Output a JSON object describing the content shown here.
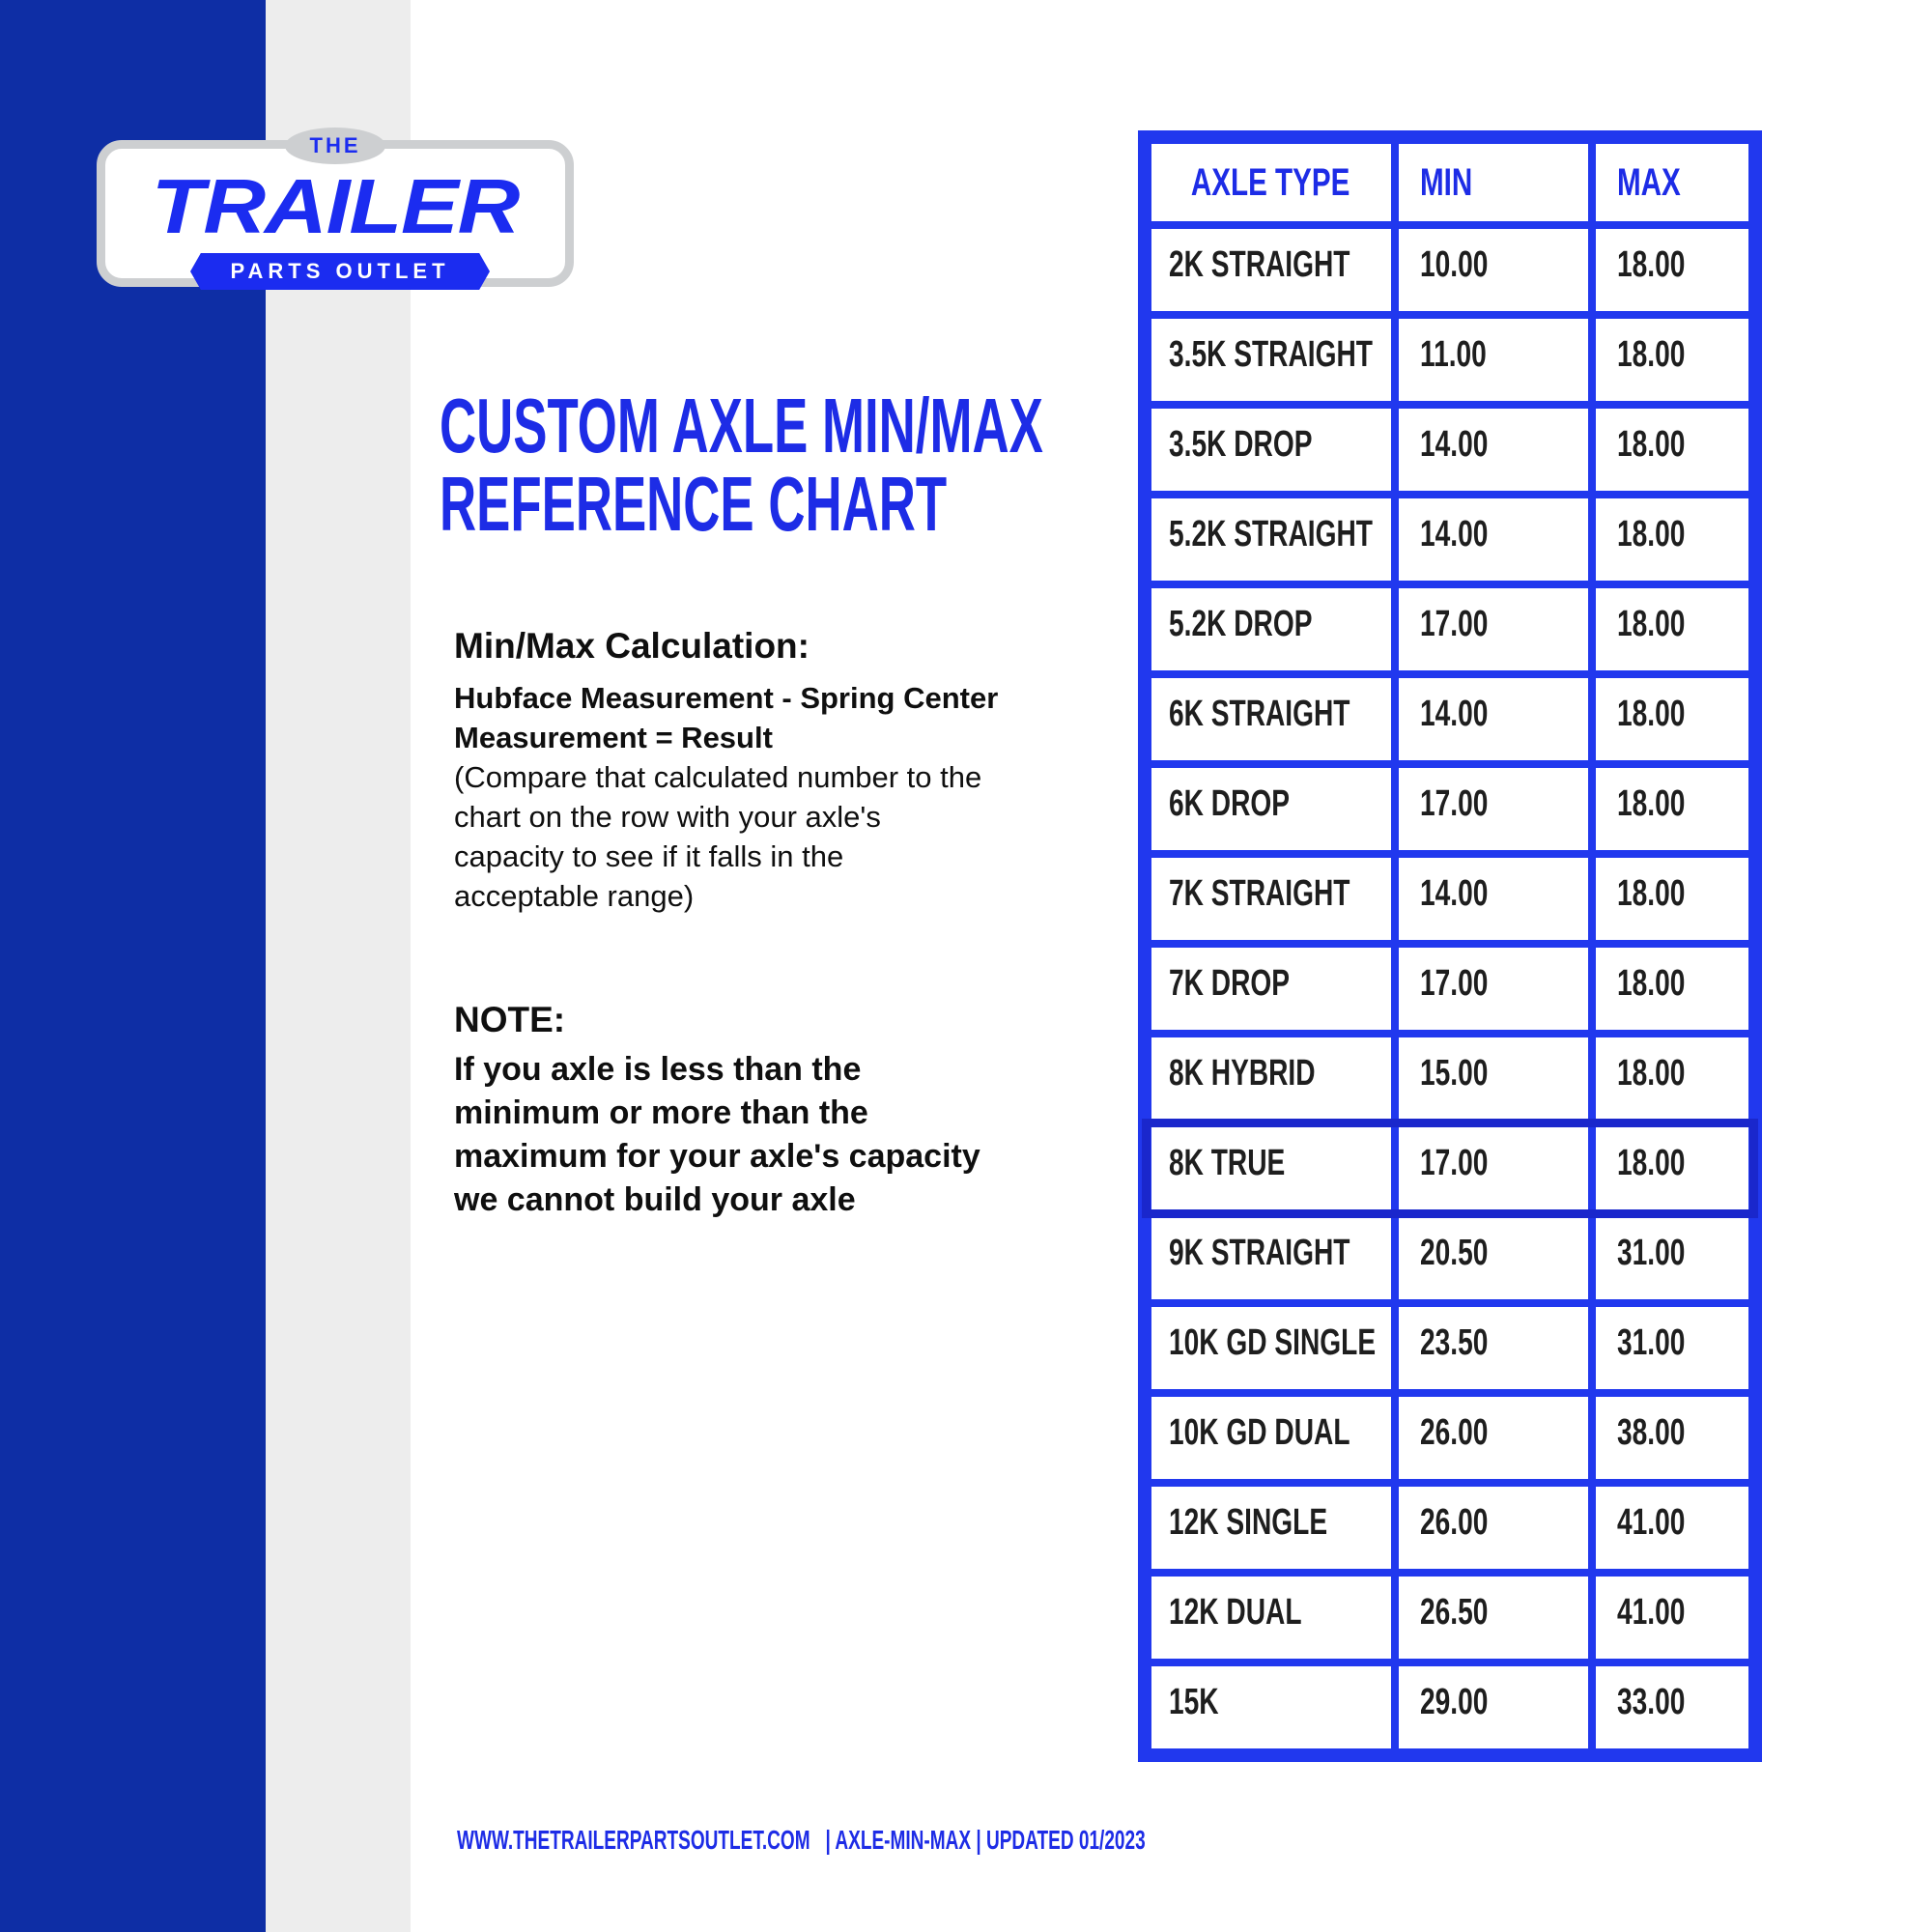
{
  "colors": {
    "navy_bar": "#0e2ea5",
    "gray_stripe": "#ededed",
    "brand_blue": "#1b2cf0",
    "title_blue": "#1d2ce6",
    "table_border_blue": "#2138ee",
    "highlight_border_blue": "#1a27cc",
    "text_dark": "#0f0f0f"
  },
  "logo": {
    "the": "THE",
    "name": "TRAILER",
    "tagline": "PARTS OUTLET"
  },
  "title": {
    "line1": "CUSTOM AXLE MIN/MAX",
    "line2": "REFERENCE CHART"
  },
  "calculation": {
    "heading": "Min/Max Calculation:",
    "formula": "Hubface Measurement - Spring Center\nMeasurement = Result",
    "explanation": "(Compare that calculated number to the\nchart on the row with your axle's\ncapacity to see if it falls in the\nacceptable range)"
  },
  "note": {
    "heading": "NOTE:",
    "body": "If you axle is less than the\nminimum or more than the\nmaximum for your axle's capacity\nwe cannot build your axle"
  },
  "table": {
    "headers": [
      "AXLE TYPE",
      "MIN",
      "MAX"
    ],
    "rows": [
      {
        "type": "2K STRAIGHT",
        "min": "10.00",
        "max": "18.00",
        "highlight": false
      },
      {
        "type": "3.5K STRAIGHT",
        "min": "11.00",
        "max": "18.00",
        "highlight": false
      },
      {
        "type": "3.5K DROP",
        "min": "14.00",
        "max": "18.00",
        "highlight": false
      },
      {
        "type": "5.2K STRAIGHT",
        "min": "14.00",
        "max": "18.00",
        "highlight": false
      },
      {
        "type": "5.2K DROP",
        "min": "17.00",
        "max": "18.00",
        "highlight": false
      },
      {
        "type": "6K STRAIGHT",
        "min": "14.00",
        "max": "18.00",
        "highlight": false
      },
      {
        "type": "6K DROP",
        "min": "17.00",
        "max": "18.00",
        "highlight": false
      },
      {
        "type": "7K STRAIGHT",
        "min": "14.00",
        "max": "18.00",
        "highlight": false
      },
      {
        "type": "7K DROP",
        "min": "17.00",
        "max": "18.00",
        "highlight": false
      },
      {
        "type": "8K HYBRID",
        "min": "15.00",
        "max": "18.00",
        "highlight": false
      },
      {
        "type": "8K TRUE",
        "min": "17.00",
        "max": "18.00",
        "highlight": true
      },
      {
        "type": "9K STRAIGHT",
        "min": "20.50",
        "max": "31.00",
        "highlight": false
      },
      {
        "type": "10K GD SINGLE",
        "min": "23.50",
        "max": "31.00",
        "highlight": false
      },
      {
        "type": "10K GD DUAL",
        "min": "26.00",
        "max": "38.00",
        "highlight": false
      },
      {
        "type": "12K SINGLE",
        "min": "26.00",
        "max": "41.00",
        "highlight": false
      },
      {
        "type": "12K DUAL",
        "min": "26.50",
        "max": "41.00",
        "highlight": false
      },
      {
        "type": "15K",
        "min": "29.00",
        "max": "33.00",
        "highlight": false
      }
    ]
  },
  "footer": {
    "text": "WWW.THETRAILERPARTSOUTLET.COM   | AXLE-MIN-MAX | UPDATED 01/2023"
  }
}
